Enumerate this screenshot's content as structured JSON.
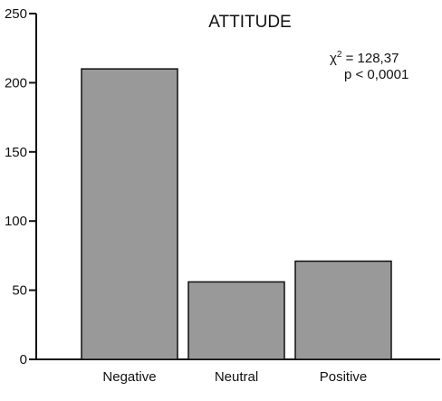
{
  "chart_data": {
    "type": "bar",
    "title": "ATTITUDE",
    "xlabel": "",
    "ylabel": "",
    "categories": [
      "Negative",
      "Neutral",
      "Positive"
    ],
    "values": [
      210,
      56,
      71
    ],
    "ylim": [
      0,
      250
    ],
    "yticks": [
      0,
      50,
      100,
      150,
      200,
      250
    ],
    "grid": false,
    "legend": "none",
    "bar_color": "#999999",
    "annotations": {
      "chi_symbol": "χ",
      "chi_exponent": "2",
      "chi_value": " = 128,37",
      "p_value": "p < 0,0001"
    }
  }
}
